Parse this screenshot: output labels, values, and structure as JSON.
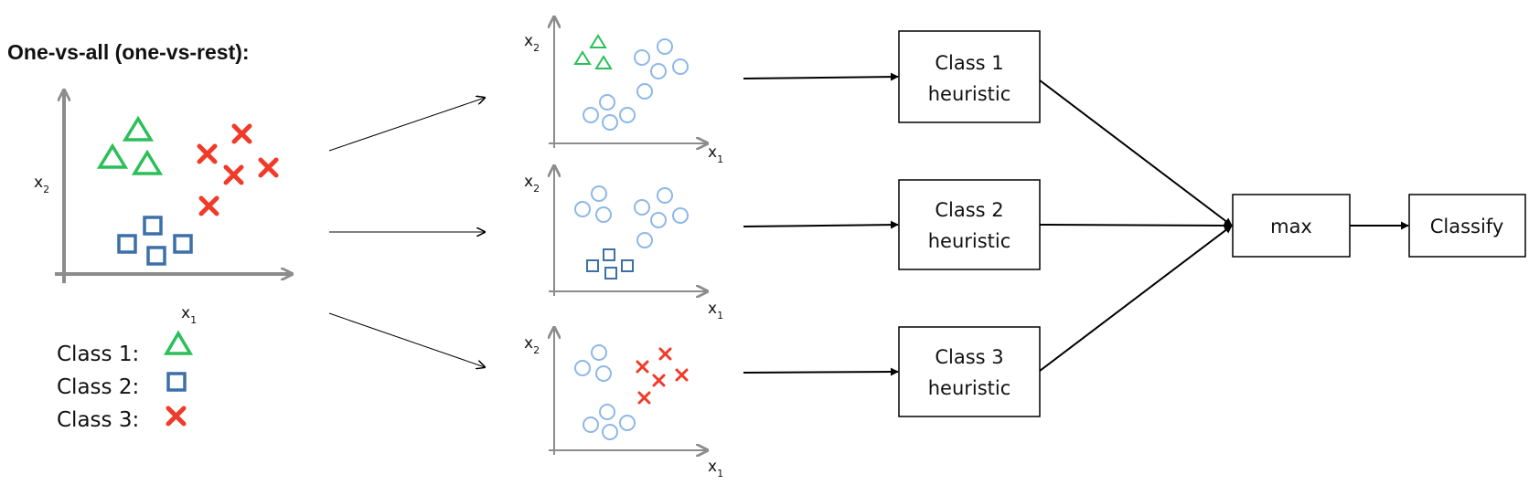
{
  "title": "One-vs-all (one-vs-rest):",
  "axis": {
    "x": "x",
    "y": "x",
    "sub": "1",
    "sub2": "2"
  },
  "legend": [
    {
      "label": "Class 1:",
      "icon": "triangle-icon"
    },
    {
      "label": "Class 2:",
      "icon": "square-icon"
    },
    {
      "label": "Class 3:",
      "icon": "cross-icon"
    }
  ],
  "heuristics": [
    {
      "line1": "Class 1",
      "line2": "heuristic"
    },
    {
      "line1": "Class 2",
      "line2": "heuristic"
    },
    {
      "line1": "Class 3",
      "line2": "heuristic"
    }
  ],
  "max_label": "max",
  "classify_label": "Classify",
  "colors": {
    "class1": "#2bbf5a",
    "class2": "#3d6fa8",
    "class3": "#f03a2a",
    "rest": "#8db8e8",
    "axis": "#8c8c8c"
  }
}
